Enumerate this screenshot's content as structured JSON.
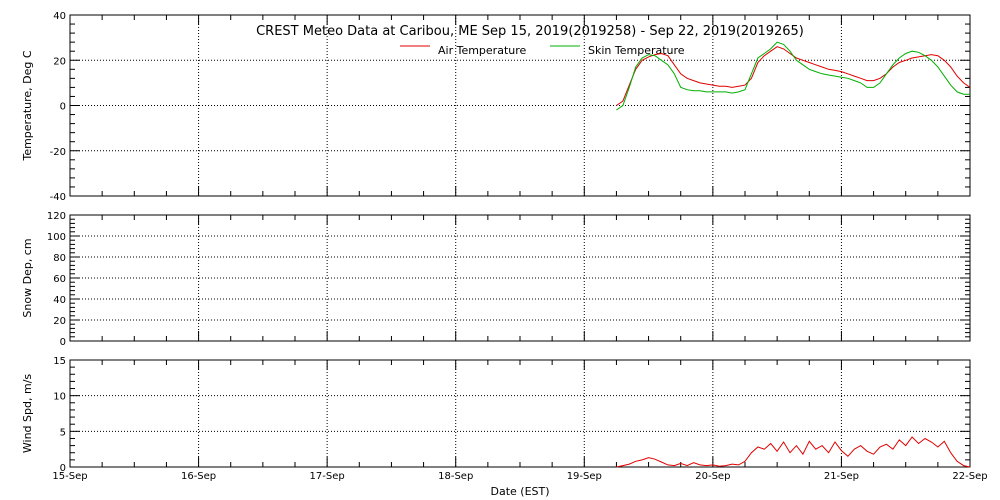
{
  "chart_data": {
    "type": "line",
    "title": "CREST Meteo Data at Caribou, ME   Sep 15, 2019(2019258) - Sep 22, 2019(2019265)",
    "xlabel": "Date (EST)",
    "x_tick_labels": [
      "15-Sep",
      "16-Sep",
      "17-Sep",
      "18-Sep",
      "19-Sep",
      "20-Sep",
      "21-Sep",
      "22-Sep"
    ],
    "x_range_days": [
      0,
      7
    ],
    "grid": true,
    "legend_placement": "top-center",
    "panels": [
      {
        "ylabel": "Temperature, Deg C",
        "ylim": [
          -40,
          40
        ],
        "y_ticks": [
          -40,
          -20,
          0,
          20,
          40
        ],
        "series": [
          {
            "name": "Air Temperature",
            "color": "#e00000",
            "x": [
              4.25,
              4.3,
              4.35,
              4.4,
              4.45,
              4.5,
              4.55,
              4.6,
              4.65,
              4.7,
              4.75,
              4.8,
              4.85,
              4.9,
              4.95,
              5.0,
              5.05,
              5.1,
              5.15,
              5.2,
              5.25,
              5.3,
              5.35,
              5.4,
              5.45,
              5.5,
              5.55,
              5.6,
              5.65,
              5.7,
              5.75,
              5.8,
              5.85,
              5.9,
              5.95,
              6.0,
              6.05,
              6.1,
              6.15,
              6.2,
              6.25,
              6.3,
              6.35,
              6.4,
              6.45,
              6.5,
              6.55,
              6.6,
              6.65,
              6.7,
              6.75,
              6.8,
              6.85,
              6.9,
              6.95,
              7.0
            ],
            "y": [
              0,
              2,
              9,
              16,
              20,
              21.5,
              22.5,
              23,
              22,
              18,
              14,
              12,
              11,
              10,
              9.5,
              9,
              8.5,
              8.5,
              8,
              8.5,
              9,
              12,
              19,
              22,
              24,
              26,
              25,
              23,
              21,
              20,
              19,
              18,
              17,
              16,
              15.5,
              15,
              14,
              13,
              12,
              11,
              11,
              12,
              14,
              17,
              19,
              20,
              21,
              21.5,
              22,
              22.5,
              22,
              20,
              17,
              13,
              10,
              8
            ]
          },
          {
            "name": "Skin Temperature",
            "color": "#00b000",
            "x": [
              4.25,
              4.3,
              4.35,
              4.4,
              4.45,
              4.5,
              4.55,
              4.6,
              4.65,
              4.7,
              4.75,
              4.8,
              4.85,
              4.9,
              4.95,
              5.0,
              5.05,
              5.1,
              5.15,
              5.2,
              5.25,
              5.3,
              5.35,
              5.4,
              5.45,
              5.5,
              5.55,
              5.6,
              5.65,
              5.7,
              5.75,
              5.8,
              5.85,
              5.9,
              5.95,
              6.0,
              6.05,
              6.1,
              6.15,
              6.2,
              6.25,
              6.3,
              6.35,
              6.4,
              6.45,
              6.5,
              6.55,
              6.6,
              6.65,
              6.7,
              6.75,
              6.8,
              6.85,
              6.9,
              6.95,
              7.0
            ],
            "y": [
              -2,
              0,
              8,
              17,
              21,
              22.5,
              22,
              20,
              18,
              14,
              8,
              7,
              6.5,
              6.5,
              6,
              6,
              6,
              6,
              5.5,
              6,
              7,
              14,
              21,
              23,
              25,
              28,
              27,
              24,
              20,
              18,
              16,
              15,
              14,
              13.5,
              13,
              12.5,
              12,
              11,
              10,
              8,
              8,
              10,
              14,
              18,
              21,
              23,
              24,
              23.5,
              22,
              20,
              17,
              13,
              9,
              6,
              5,
              5
            ]
          }
        ]
      },
      {
        "ylabel": "Snow Dep, cm",
        "ylim": [
          0,
          120
        ],
        "y_ticks": [
          0,
          20,
          40,
          60,
          80,
          100,
          120
        ],
        "series": []
      },
      {
        "ylabel": "Wind Spd, m/s",
        "ylim": [
          0,
          15
        ],
        "y_ticks": [
          0,
          5,
          10,
          15
        ],
        "series": [
          {
            "name": "",
            "color": "#e00000",
            "x": [
              4.25,
              4.3,
              4.35,
              4.4,
              4.45,
              4.5,
              4.55,
              4.6,
              4.65,
              4.7,
              4.75,
              4.8,
              4.85,
              4.9,
              4.95,
              5.0,
              5.05,
              5.1,
              5.15,
              5.2,
              5.25,
              5.3,
              5.35,
              5.4,
              5.45,
              5.5,
              5.55,
              5.6,
              5.65,
              5.7,
              5.75,
              5.8,
              5.85,
              5.9,
              5.95,
              6.0,
              6.05,
              6.1,
              6.15,
              6.2,
              6.25,
              6.3,
              6.35,
              6.4,
              6.45,
              6.5,
              6.55,
              6.6,
              6.65,
              6.7,
              6.75,
              6.8,
              6.85,
              6.9,
              6.95,
              7.0
            ],
            "y": [
              0,
              0.2,
              0.4,
              0.8,
              1.0,
              1.3,
              1.1,
              0.7,
              0.3,
              0.2,
              0.5,
              0.2,
              0.6,
              0.3,
              0.2,
              0.3,
              0.1,
              0.2,
              0.4,
              0.3,
              0.8,
              2.0,
              2.8,
              2.5,
              3.3,
              2.2,
              3.5,
              2.0,
              3.0,
              1.8,
              3.6,
              2.5,
              3.0,
              2.0,
              3.5,
              2.3,
              1.5,
              2.5,
              3.0,
              2.2,
              1.8,
              2.8,
              3.2,
              2.5,
              3.8,
              3.0,
              4.2,
              3.3,
              4.0,
              3.5,
              2.8,
              3.6,
              2.0,
              0.8,
              0.2,
              0
            ]
          }
        ]
      }
    ]
  }
}
